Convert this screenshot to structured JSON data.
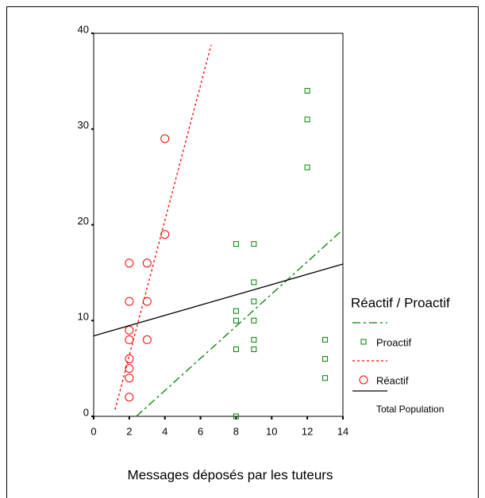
{
  "chart_data": {
    "type": "scatter",
    "xlabel": "Messages déposés par les tuteurs",
    "legend_title": "Réactif / Proactif",
    "xlim": [
      0,
      14
    ],
    "ylim": [
      0,
      40
    ],
    "xticks": [
      0,
      2,
      4,
      6,
      8,
      10,
      12,
      14
    ],
    "yticks": [
      0,
      10,
      20,
      30,
      40
    ],
    "series": [
      {
        "name": "Proactif",
        "color": "#008000",
        "marker": "square",
        "x": [
          8,
          9,
          12,
          12,
          12,
          9,
          9,
          8,
          8,
          9,
          9,
          9,
          8,
          13,
          13,
          13,
          8
        ],
        "values": [
          18,
          18,
          34,
          31,
          26,
          14,
          12,
          11,
          10,
          10,
          8,
          7,
          7,
          8,
          6,
          4,
          0
        ],
        "fit": {
          "x": [
            2.4,
            14
          ],
          "values": [
            0,
            19.5
          ]
        }
      },
      {
        "name": "Réactif",
        "color": "#ff0000",
        "marker": "circle",
        "x": [
          4,
          4,
          2,
          3,
          2,
          3,
          2,
          2,
          3,
          2,
          2,
          2,
          2
        ],
        "values": [
          29,
          19,
          16,
          16,
          12,
          12,
          9,
          8,
          8,
          6,
          5,
          4,
          2
        ],
        "fit": {
          "x": [
            1.2,
            6.6
          ],
          "values": [
            0.7,
            38.8
          ]
        }
      }
    ],
    "total_fit": {
      "name": "Total Population",
      "color": "#000000",
      "x": [
        0,
        14
      ],
      "values": [
        8.4,
        15.9
      ]
    }
  }
}
